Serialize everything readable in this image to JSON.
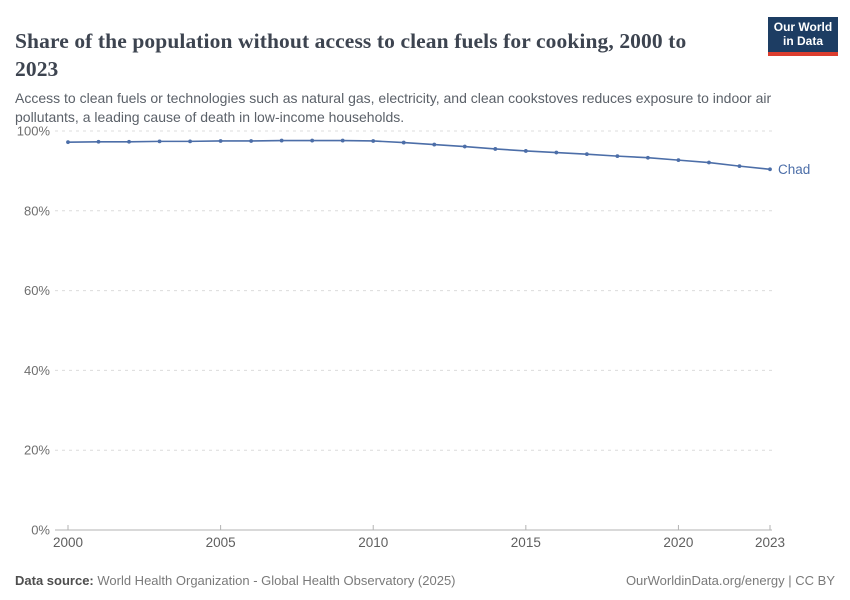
{
  "header": {
    "title": "Share of the population without access to clean fuels for cooking, 2000 to 2023",
    "subtitle": "Access to clean fuels or technologies such as natural gas, electricity, and clean cookstoves reduces exposure to indoor air pollutants, a leading cause of death in low-income households.",
    "logo": {
      "line1": "Our World",
      "line2": "in Data",
      "bg_color": "#1d3d63",
      "accent_color": "#dc3d2e"
    }
  },
  "chart_data": {
    "type": "line",
    "title": "Share of the population without access to clean fuels for cooking",
    "x": [
      2000,
      2001,
      2002,
      2003,
      2004,
      2005,
      2006,
      2007,
      2008,
      2009,
      2010,
      2011,
      2012,
      2013,
      2014,
      2015,
      2016,
      2017,
      2018,
      2019,
      2020,
      2021,
      2022,
      2023
    ],
    "series": [
      {
        "name": "Chad",
        "color": "#4c6ea8",
        "values": [
          97.2,
          97.3,
          97.3,
          97.4,
          97.4,
          97.5,
          97.5,
          97.6,
          97.6,
          97.6,
          97.5,
          97.1,
          96.6,
          96.1,
          95.5,
          95.0,
          94.6,
          94.2,
          93.7,
          93.3,
          92.7,
          92.1,
          91.2,
          90.4
        ]
      }
    ],
    "end_label": "Chad",
    "xlabel": "",
    "ylabel": "",
    "ylim": [
      0,
      100
    ],
    "yticks": [
      0,
      20,
      40,
      60,
      80,
      100
    ],
    "ytick_labels": [
      "0%",
      "20%",
      "40%",
      "60%",
      "80%",
      "100%"
    ],
    "xticks": [
      2000,
      2005,
      2010,
      2015,
      2020,
      2023
    ],
    "xtick_labels": [
      "2000",
      "2005",
      "2010",
      "2015",
      "2020",
      "2023"
    ],
    "grid": "horizontal-dashed",
    "legend_position": "end-of-line-label",
    "colors": {
      "gridline": "#dcdcdc",
      "axis": "#b3b3b3",
      "ytick_text": "#6e6e6e",
      "xtick_text": "#5f5f5f"
    }
  },
  "footer": {
    "source_label": "Data source:",
    "source_text": " World Health Organization - Global Health Observatory (2025)",
    "rights_text": "OurWorldinData.org/energy | CC BY"
  }
}
